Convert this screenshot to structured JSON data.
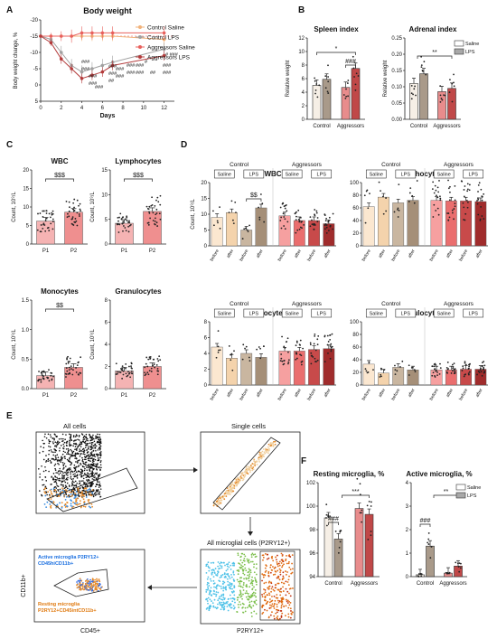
{
  "panel_letters": [
    "A",
    "B",
    "C",
    "D",
    "E",
    "F"
  ],
  "chart_data": [
    {
      "id": "A",
      "type": "line",
      "title": "Body weight",
      "xlabel": "Days",
      "ylabel": "Body weight change, %",
      "xlim": [
        0,
        13
      ],
      "ylim": [
        -20,
        5
      ],
      "xticks": [
        "0",
        "2",
        "4",
        "6",
        "8",
        "10",
        "12"
      ],
      "yticks": [
        "5",
        "0",
        "-5",
        "-10",
        "-15",
        "-20"
      ],
      "legend_position": "top-right",
      "series": [
        {
          "name": "Control Saline",
          "color": "#f2b27a",
          "marker": "circle",
          "x": [
            0,
            1,
            2,
            3,
            4,
            5,
            6,
            7,
            12
          ],
          "y": [
            0,
            0,
            0,
            0,
            0,
            0,
            0,
            0,
            -1
          ],
          "err": [
            0.5,
            0.5,
            1,
            1,
            1.5,
            1.5,
            1.5,
            1.5,
            2
          ]
        },
        {
          "name": "Control LPS",
          "color": "#a0a0a0",
          "marker": "circle",
          "x": [
            0,
            1,
            2,
            3,
            4,
            5,
            6,
            7,
            12
          ],
          "y": [
            0,
            -1,
            -5,
            -9,
            -11,
            -10,
            -9,
            -8,
            -4
          ],
          "err": [
            0.5,
            1,
            2,
            2,
            2,
            2,
            2,
            2,
            2
          ]
        },
        {
          "name": "Aggressors Saline",
          "color": "#e8605c",
          "marker": "circle",
          "x": [
            0,
            1,
            2,
            3,
            4,
            5,
            6,
            7,
            12
          ],
          "y": [
            0,
            0,
            0,
            0,
            1,
            1,
            1,
            1,
            1
          ],
          "err": [
            0.5,
            1,
            1.5,
            2,
            2,
            2,
            2,
            2,
            2
          ]
        },
        {
          "name": "Aggressors LPS",
          "color": "#b33b3b",
          "marker": "circle",
          "x": [
            0,
            1,
            2,
            3,
            4,
            5,
            6,
            7,
            12
          ],
          "y": [
            0,
            -2,
            -7,
            -10,
            -13,
            -12,
            -11,
            -9,
            -6
          ],
          "err": [
            0.5,
            1,
            1.5,
            1.5,
            1.5,
            1.5,
            1.5,
            1.5,
            1.5
          ]
        }
      ],
      "annotations": [
        "###",
        "###",
        "###",
        "###",
        "##",
        "###",
        "###",
        "###",
        "###",
        "###",
        "###",
        "###",
        "###",
        "###",
        "##",
        "#",
        "###",
        "###",
        "# ###"
      ]
    },
    {
      "id": "B1",
      "type": "bar",
      "title": "Spleen index",
      "ylabel": "Relative weight",
      "groups": [
        "Control",
        "Aggressors"
      ],
      "ylim": [
        0,
        12
      ],
      "yticks": [
        "0",
        "2",
        "4",
        "6",
        "8",
        "10",
        "12"
      ],
      "series": [
        {
          "name": "Saline",
          "values": [
            5.0,
            4.7
          ]
        },
        {
          "name": "LPS",
          "values": [
            5.9,
            7.5
          ]
        }
      ],
      "annotations": [
        "*",
        "###"
      ]
    },
    {
      "id": "B2",
      "type": "bar",
      "title": "Adrenal index",
      "ylabel": "Relative weight",
      "groups": [
        "Control",
        "Aggressors"
      ],
      "ylim": [
        0,
        0.25
      ],
      "yticks": [
        "0.00",
        "0.05",
        "0.10",
        "0.15",
        "0.20",
        "0.25"
      ],
      "series": [
        {
          "name": "Saline",
          "values": [
            0.11,
            0.085
          ]
        },
        {
          "name": "LPS",
          "values": [
            0.14,
            0.095
          ]
        }
      ],
      "annotations": [
        "**"
      ],
      "legend": [
        "Saline",
        "LPS"
      ]
    },
    {
      "id": "C1",
      "type": "bar",
      "title": "WBC",
      "ylabel": "Count, 10⁹/L",
      "categories": [
        "P1",
        "P2"
      ],
      "values": [
        6.2,
        8.6
      ],
      "ylim": [
        0,
        20
      ],
      "yticks": [
        "0",
        "5",
        "10",
        "15",
        "20"
      ],
      "annotations": [
        "$$$"
      ]
    },
    {
      "id": "C2",
      "type": "bar",
      "title": "Lymphocytes",
      "ylabel": "Count, 10⁹/L",
      "categories": [
        "P1",
        "P2"
      ],
      "values": [
        4.2,
        6.6
      ],
      "ylim": [
        0,
        15
      ],
      "yticks": [
        "0",
        "5",
        "10",
        "15"
      ],
      "annotations": [
        "$$$"
      ]
    },
    {
      "id": "C3",
      "type": "bar",
      "title": "Monocytes",
      "ylabel": "Count, 10⁹/L",
      "categories": [
        "P1",
        "P2"
      ],
      "values": [
        0.22,
        0.36
      ],
      "ylim": [
        0,
        1.5
      ],
      "yticks": [
        "0.0",
        "0.5",
        "1.0",
        "1.5"
      ],
      "annotations": [
        "$$"
      ]
    },
    {
      "id": "C4",
      "type": "bar",
      "title": "Granulocytes",
      "ylabel": "Count, 10⁹/L",
      "categories": [
        "P1",
        "P2"
      ],
      "values": [
        1.6,
        2.0
      ],
      "ylim": [
        0,
        8
      ],
      "yticks": [
        "0",
        "2",
        "4",
        "6",
        "8"
      ]
    },
    {
      "id": "D1",
      "type": "bar",
      "title": "WBC",
      "ylabel": "Count, 10⁹/L",
      "ylim": [
        0,
        20
      ],
      "yticks": [
        "0",
        "5",
        "10",
        "15",
        "20"
      ],
      "group_headers": [
        "Control",
        "Aggressors"
      ],
      "treatments": [
        "Saline",
        "LPS",
        "Saline",
        "LPS"
      ],
      "categories": [
        "before",
        "after",
        "before",
        "after",
        "before",
        "after",
        "before",
        "after"
      ],
      "values": [
        9.0,
        10.5,
        5.0,
        12.0,
        9.5,
        8.0,
        8.0,
        7.0
      ],
      "annotations": [
        "$$"
      ]
    },
    {
      "id": "D2",
      "type": "bar",
      "title": "Lymphocytes, %",
      "ylim": [
        0,
        100
      ],
      "yticks": [
        "0",
        "20",
        "40",
        "60",
        "80",
        "100"
      ],
      "group_headers": [
        "Control",
        "Aggressors"
      ],
      "treatments": [
        "Saline",
        "LPS",
        "Saline",
        "LPS"
      ],
      "categories": [
        "before",
        "after",
        "before",
        "after",
        "before",
        "after",
        "before",
        "after"
      ],
      "values": [
        62,
        77,
        68,
        72,
        72,
        71,
        71,
        70
      ]
    },
    {
      "id": "D3",
      "type": "bar",
      "title": "Monocytes, %",
      "ylim": [
        0,
        8
      ],
      "yticks": [
        "0",
        "2",
        "4",
        "6",
        "8"
      ],
      "group_headers": [
        "Control",
        "Aggressors"
      ],
      "treatments": [
        "Saline",
        "LPS",
        "Saline",
        "LPS"
      ],
      "categories": [
        "before",
        "after",
        "before",
        "after",
        "before",
        "after",
        "before",
        "after"
      ],
      "values": [
        4.8,
        3.4,
        4.0,
        3.5,
        4.3,
        4.3,
        4.5,
        4.6
      ]
    },
    {
      "id": "D4",
      "type": "bar",
      "title": "Granulocytes, %",
      "ylim": [
        0,
        100
      ],
      "yticks": [
        "0",
        "20",
        "40",
        "60",
        "80",
        "100"
      ],
      "group_headers": [
        "Control",
        "Aggressors"
      ],
      "treatments": [
        "Saline",
        "LPS",
        "Saline",
        "LPS"
      ],
      "categories": [
        "before",
        "after",
        "before",
        "after",
        "before",
        "after",
        "before",
        "after"
      ],
      "values": [
        33,
        19,
        28,
        24,
        24,
        24,
        25,
        25
      ]
    },
    {
      "id": "F1",
      "type": "bar",
      "title": "Resting microglia, %",
      "groups": [
        "Control",
        "Aggressors"
      ],
      "ylim": [
        94,
        102
      ],
      "yticks": [
        "94",
        "96",
        "98",
        "100",
        "102"
      ],
      "series": [
        {
          "name": "Saline",
          "values": [
            99.0,
            99.8
          ]
        },
        {
          "name": "LPS",
          "values": [
            97.2,
            99.3
          ]
        }
      ],
      "annotations": [
        "###",
        "***"
      ]
    },
    {
      "id": "F2",
      "type": "bar",
      "title": "Active microglia, %",
      "groups": [
        "Control",
        "Aggressors"
      ],
      "ylim": [
        0,
        4
      ],
      "yticks": [
        "0",
        "1",
        "2",
        "3",
        "4"
      ],
      "series": [
        {
          "name": "Saline",
          "values": [
            0.08,
            0.15
          ]
        },
        {
          "name": "LPS",
          "values": [
            1.3,
            0.45
          ]
        }
      ],
      "annotations": [
        "###",
        "**"
      ],
      "legend": [
        "Saline",
        "LPS"
      ]
    }
  ],
  "flow_panel": {
    "titles": [
      "All cells",
      "Single cells",
      "All microglial cells (P2RY12+)"
    ],
    "axis_labels": [
      "CD11b+",
      "CD45+",
      "P2RY12+"
    ],
    "active_label_1": "Active microglia P2RY12+",
    "active_label_2": "CD45hiCD11b+",
    "resting_label_1": "Resting microglia",
    "resting_label_2": "P2RY12+CD45intCD11b+",
    "colors": {
      "active": "#1a6fe0",
      "resting": "#e07a10"
    }
  }
}
